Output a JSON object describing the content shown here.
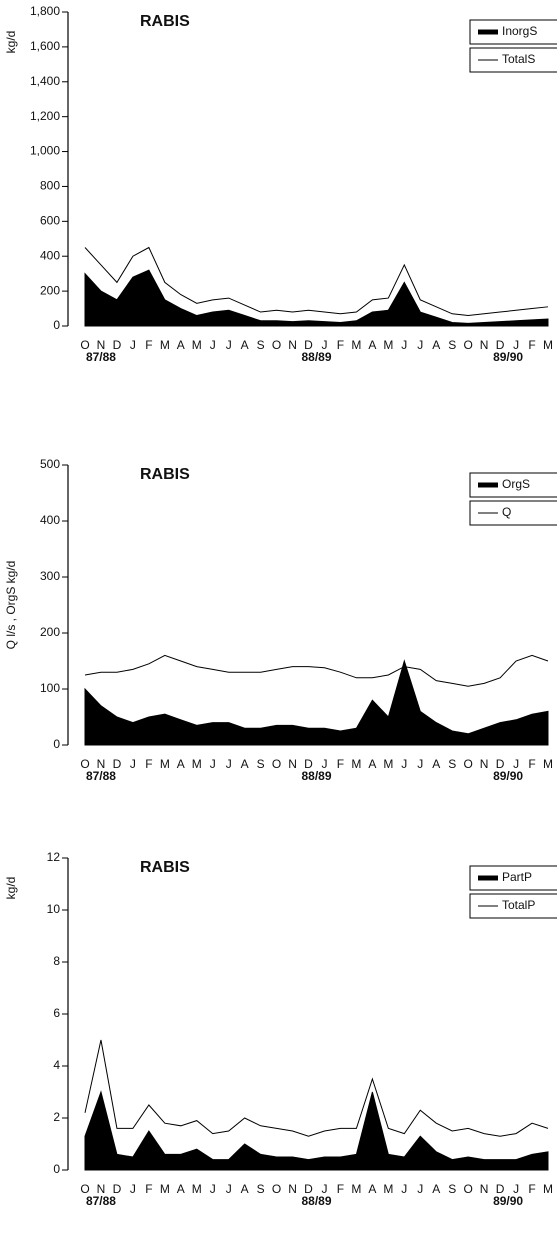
{
  "chart_data": [
    {
      "type": "line",
      "title": "RABIS",
      "y_label": "kg/d",
      "categories": [
        "O",
        "N",
        "D",
        "J",
        "F",
        "M",
        "A",
        "M",
        "J",
        "J",
        "A",
        "S",
        "O",
        "N",
        "D",
        "J",
        "F",
        "M",
        "A",
        "M",
        "J",
        "J",
        "A",
        "S",
        "O",
        "N",
        "D",
        "J",
        "F",
        "M"
      ],
      "annotations": [
        "87/88",
        "88/89",
        "89/90"
      ],
      "series": [
        {
          "name": "InorgS",
          "color": "#000000",
          "fill": true,
          "values": [
            300,
            200,
            150,
            280,
            320,
            150,
            100,
            60,
            80,
            90,
            60,
            30,
            30,
            25,
            30,
            25,
            20,
            30,
            80,
            90,
            250,
            80,
            50,
            20,
            15,
            20,
            25,
            30,
            35,
            40
          ]
        },
        {
          "name": "TotalS",
          "color": "#000000",
          "fill": false,
          "values": [
            450,
            350,
            250,
            400,
            450,
            250,
            180,
            130,
            150,
            160,
            120,
            80,
            90,
            80,
            90,
            80,
            70,
            80,
            150,
            160,
            350,
            150,
            110,
            70,
            60,
            70,
            80,
            90,
            100,
            110
          ]
        }
      ],
      "ylim": [
        0,
        1800
      ],
      "yticks": [
        0,
        200,
        400,
        600,
        800,
        {
          "value": 1000,
          "label": "1,000"
        },
        {
          "value": 1200,
          "label": "1,200"
        },
        {
          "value": 1400,
          "label": "1,400"
        },
        {
          "value": 1600,
          "label": "1,600"
        },
        {
          "value": 1800,
          "label": "1,800"
        }
      ],
      "legend": "upper right"
    },
    {
      "type": "line",
      "title": "RABIS",
      "y_label": "Q l/s , OrgS kg/d",
      "categories": [
        "O",
        "N",
        "D",
        "J",
        "F",
        "M",
        "A",
        "M",
        "J",
        "J",
        "A",
        "S",
        "O",
        "N",
        "D",
        "J",
        "F",
        "M",
        "A",
        "M",
        "J",
        "J",
        "A",
        "S",
        "O",
        "N",
        "D",
        "J",
        "F",
        "M"
      ],
      "annotations": [
        "87/88",
        "88/89",
        "89/90"
      ],
      "series": [
        {
          "name": "OrgS",
          "color": "#000000",
          "fill": true,
          "values": [
            100,
            70,
            50,
            40,
            50,
            55,
            45,
            35,
            40,
            40,
            30,
            30,
            35,
            35,
            30,
            30,
            25,
            30,
            80,
            50,
            150,
            60,
            40,
            25,
            20,
            30,
            40,
            45,
            55,
            60
          ]
        },
        {
          "name": "Q",
          "color": "#000000",
          "fill": false,
          "values": [
            125,
            130,
            130,
            135,
            145,
            160,
            150,
            140,
            135,
            130,
            130,
            130,
            135,
            140,
            140,
            138,
            130,
            120,
            120,
            125,
            140,
            135,
            115,
            110,
            105,
            110,
            120,
            150,
            160,
            150
          ]
        }
      ],
      "ylim": [
        0,
        500
      ],
      "yticks": [
        0,
        100,
        200,
        300,
        400,
        500
      ],
      "legend": "upper right"
    },
    {
      "type": "line",
      "title": "RABIS",
      "y_label": "kg/d",
      "categories": [
        "O",
        "N",
        "D",
        "J",
        "F",
        "M",
        "A",
        "M",
        "J",
        "J",
        "A",
        "S",
        "O",
        "N",
        "D",
        "J",
        "F",
        "M",
        "A",
        "M",
        "J",
        "J",
        "A",
        "S",
        "O",
        "N",
        "D",
        "J",
        "F",
        "M"
      ],
      "annotations": [
        "87/88",
        "88/89",
        "89/90"
      ],
      "series": [
        {
          "name": "PartP",
          "color": "#000000",
          "fill": true,
          "values": [
            1.3,
            3,
            0.6,
            0.5,
            1.5,
            0.6,
            0.6,
            0.8,
            0.4,
            0.4,
            1,
            0.6,
            0.5,
            0.5,
            0.4,
            0.5,
            0.5,
            0.6,
            3,
            0.6,
            0.5,
            1.3,
            0.7,
            0.4,
            0.5,
            0.4,
            0.4,
            0.4,
            0.6,
            0.7
          ]
        },
        {
          "name": "TotalP",
          "color": "#000000",
          "fill": false,
          "values": [
            2.2,
            5,
            1.6,
            1.6,
            2.5,
            1.8,
            1.7,
            1.9,
            1.4,
            1.5,
            2,
            1.7,
            1.6,
            1.5,
            1.3,
            1.5,
            1.6,
            1.6,
            3.5,
            1.6,
            1.4,
            2.3,
            1.8,
            1.5,
            1.6,
            1.4,
            1.3,
            1.4,
            1.8,
            1.6
          ]
        }
      ],
      "ylim": [
        0,
        12
      ],
      "yticks": [
        0,
        2,
        4,
        6,
        8,
        10,
        12
      ],
      "legend": "upper right"
    }
  ]
}
